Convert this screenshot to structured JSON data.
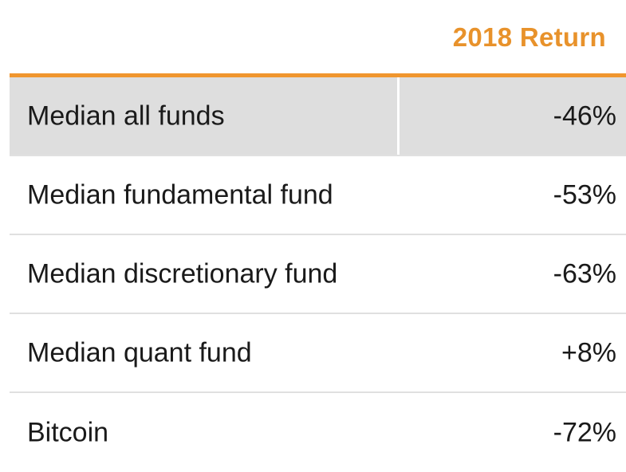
{
  "chart_data": {
    "type": "table",
    "columns": [
      "",
      "2018 Return"
    ],
    "rows": [
      {
        "label": "Median all funds",
        "value": "-46%"
      },
      {
        "label": "Median fundamental fund",
        "value": "-53%"
      },
      {
        "label": "Median discretionary fund",
        "value": "-63%"
      },
      {
        "label": "Median quant fund",
        "value": "+8%"
      },
      {
        "label": "Bitcoin",
        "value": "-72%"
      }
    ]
  },
  "colors": {
    "header_text": "#e8922b",
    "header_rule": "#f0962e",
    "highlight_row": "#dedede"
  }
}
